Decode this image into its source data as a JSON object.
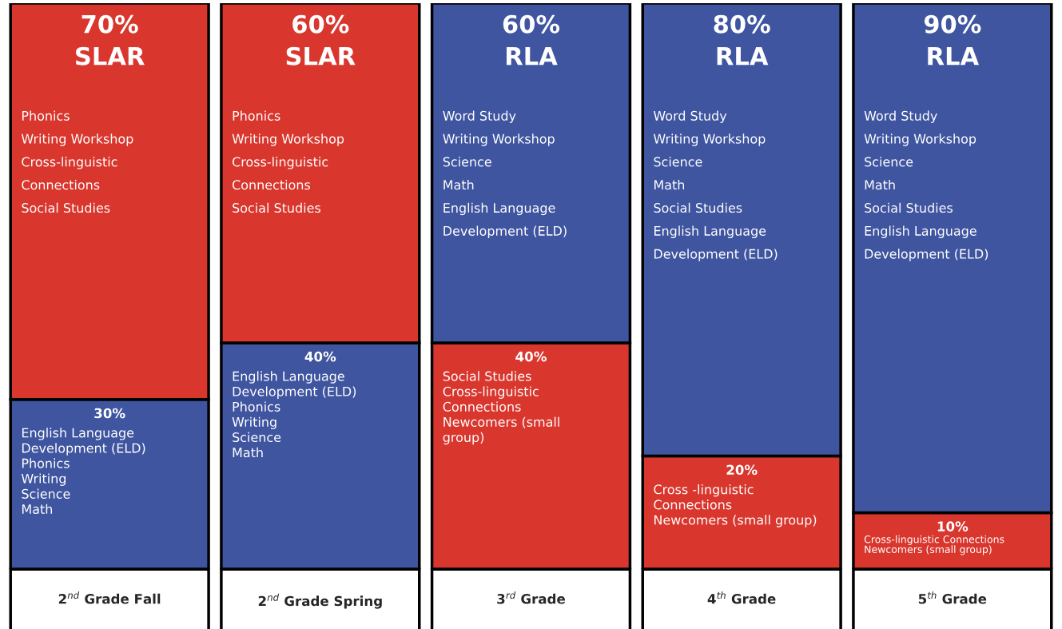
{
  "chart_data": {
    "type": "bar",
    "stacked": true,
    "categories": [
      "2$^{nd}$ Grade Fall",
      "2$^{nd}$ Grade Spring",
      "3$^{rd}$ Grade",
      "4$^{th}$ Grade",
      "5$^{th}$ Grade"
    ],
    "series": [
      {
        "values": [
          30,
          40,
          40,
          20,
          10
        ],
        "colors": [
          "#3f55a0",
          "#3f55a0",
          "#d9372e",
          "#d9372e",
          "#d9372e"
        ],
        "value_labels": [
          "30%",
          "40%",
          "40%",
          "20%",
          "10%"
        ]
      },
      {
        "values": [
          70,
          60,
          60,
          80,
          90
        ],
        "colors": [
          "#d9372e",
          "#d9372e",
          "#3f55a0",
          "#3f55a0",
          "#3f55a0"
        ],
        "value_labels": [
          "70%\nSLAR",
          "60%\nSLAR",
          "60%\nRLA",
          "80%\nRLA",
          "90%\nRLA"
        ]
      }
    ],
    "tick_labels": "x",
    "annotations": [
      "Phonics\nWriting Workshop\nCross-linguistic\nConnections\nSocial Studies",
      "English Language\nDevelopment (ELD)\nPhonics\nWriting\nScience\nMath",
      "Phonics\nWriting Workshop\nCross-linguistic\nConnections\nSocial Studies",
      "English Language\nDevelopment (ELD)\nPhonics\nWriting\nScience\nMath",
      "Word Study\nWriting Workshop\nScience\nMath\nEnglish Language\nDevelopment (ELD)",
      "Social Studies\nCross-linguistic\nConnections\nNewcomers (small\ngroup)",
      "Word Study\nWriting Workshop\nScience\nMath\nSocial Studies\nEnglish Language\nDevelopment (ELD)",
      "Cross -linguistic\nConnections\nNewcomers (small group)",
      "Word Study\nWriting Workshop\nScience\nMath\nSocial Studies\nEnglish Language\nDevelopment (ELD)",
      "Cross-linguistic Connections\nNewcomers (small group)"
    ]
  }
}
